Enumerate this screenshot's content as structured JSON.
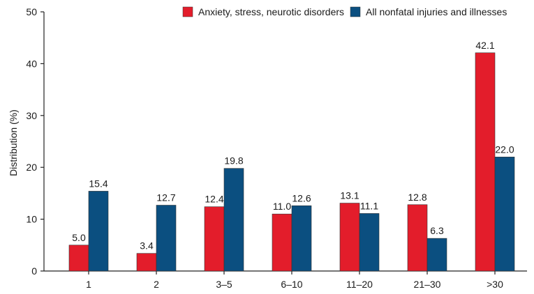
{
  "chart_data": {
    "type": "bar",
    "categories": [
      "1",
      "2",
      "3–5",
      "6–10",
      "11–20",
      "21–30",
      ">30"
    ],
    "series": [
      {
        "name": "Anxiety, stress, neurotic disorders",
        "color": "#e31d2b",
        "values": [
          5.0,
          3.4,
          12.4,
          11.0,
          13.1,
          12.8,
          42.1
        ],
        "labels": [
          "5.0",
          "3.4",
          "12.4",
          "11.0",
          "13.1",
          "12.8",
          "42.1"
        ]
      },
      {
        "name": "All nonfatal injuries and illnesses",
        "color": "#0b4f80",
        "values": [
          15.4,
          12.7,
          19.8,
          12.6,
          11.1,
          6.3,
          22.0
        ],
        "labels": [
          "15.4",
          "12.7",
          "19.8",
          "12.6",
          "11.1",
          "6.3",
          "22.0"
        ]
      }
    ],
    "ylabel": "Distribution (%)",
    "xlabel": "",
    "ylim": [
      0,
      50
    ],
    "yticks": [
      0,
      10,
      20,
      30,
      40,
      50
    ],
    "grid": false,
    "legend_position": "top"
  }
}
